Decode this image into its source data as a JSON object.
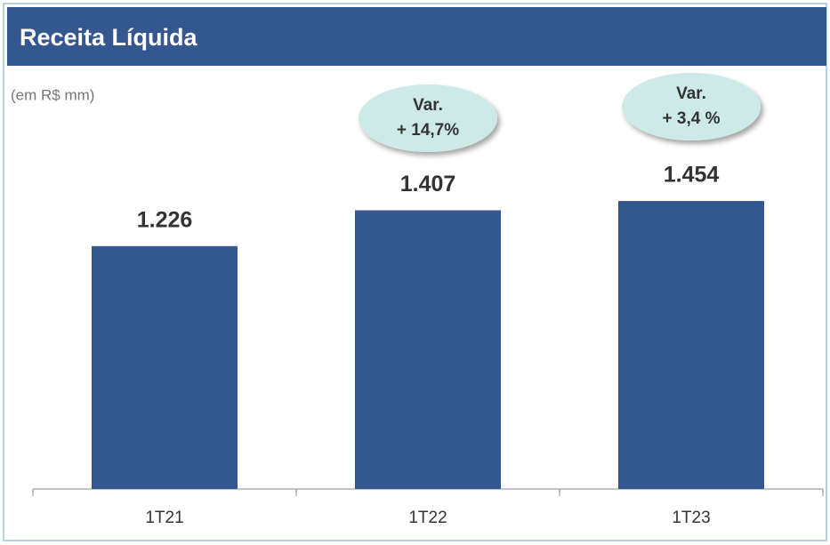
{
  "chart_data": {
    "type": "bar",
    "title": "Receita Líquida",
    "subtitle": "(em R$ mm)",
    "categories": [
      "1T21",
      "1T22",
      "1T23"
    ],
    "values": [
      1226,
      1407,
      1454
    ],
    "value_labels": [
      "1.226",
      "1.407",
      "1.454"
    ],
    "color": "#35578f",
    "annotations": [
      [
        "Var.",
        "+ 14,7%"
      ],
      [
        "Var.",
        "+ 3,4 %"
      ]
    ]
  }
}
